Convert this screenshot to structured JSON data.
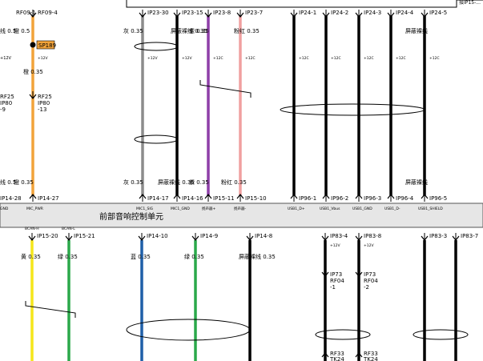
{
  "upper_module_label": "前部音响控制单元",
  "colors": {
    "orange": "#f2a33a",
    "gray": "#8c8c8c",
    "black": "#000000",
    "purple": "#8e3fa8",
    "pink": "#f0a0a0",
    "yellow": "#f5e61a",
    "green": "#2aa84a",
    "blue": "#1f5fa8",
    "splice": "#f2a33a",
    "bus": "#e6e6e6"
  },
  "left_partial": {
    "top_pin": "RF09-1",
    "top_wire": "线 0.5",
    "mid_val": "+12V",
    "connector": [
      "RF25",
      "IP80",
      "-9"
    ],
    "bottom_wire": "线 0.5",
    "bottom_pin": "IP14-28",
    "bottom_sig": "GND"
  },
  "top_wires": [
    {
      "id": "w1",
      "color_key": "orange",
      "top_pin": "RF09-4",
      "top_label": "橙 0.5",
      "splice": "SP189",
      "mid_val": "+12V",
      "mid_label": "橙 0.35",
      "connector": [
        "RF25",
        "IP80",
        "-13"
      ],
      "bottom_label": "橙 0.35",
      "bottom_pin": "IP14-27",
      "bottom_sig": "MIC_PWR"
    },
    {
      "id": "w2",
      "color_key": "gray",
      "top_pin": "IP23-30",
      "top_label": "灰 0.35",
      "mid_val": "+12V",
      "bottom_label": "灰 0.35",
      "bottom_pin": "IP14-17",
      "bottom_sig": "MIC1_SIG"
    },
    {
      "id": "w3",
      "color_key": "black",
      "top_pin": "IP23-15",
      "top_label": "屏蔽裸线 0.35",
      "mid_val": "+12V",
      "bottom_label": "屏蔽裸线 0.35",
      "bottom_pin": "IP14-16",
      "bottom_sig": "MIC1_GND"
    },
    {
      "id": "w4",
      "color_key": "purple",
      "top_pin": "IP23-8",
      "top_label": "紫 0.35",
      "mid_val": "+12C",
      "bottom_label": "紫 0.35",
      "bottom_pin": "IP15-11",
      "bottom_sig": "扬声器+"
    },
    {
      "id": "w5",
      "color_key": "pink",
      "top_pin": "IP23-7",
      "top_label": "粉红 0.35",
      "mid_val": "+12C",
      "bottom_label": "粉红 0.35",
      "bottom_pin": "IP15-10",
      "bottom_sig": "扬声器-"
    },
    {
      "id": "w6",
      "color_key": "black",
      "top_pin": "IP24-1",
      "top_label": "",
      "mid_val": "+12C",
      "bottom_label": "",
      "bottom_pin": "IP96-1",
      "bottom_sig": "USB1_D+"
    },
    {
      "id": "w7",
      "color_key": "black",
      "top_pin": "IP24-2",
      "top_label": "",
      "mid_val": "+12C",
      "bottom_label": "",
      "bottom_pin": "IP96-2",
      "bottom_sig": "USB1_Vbus"
    },
    {
      "id": "w8",
      "color_key": "black",
      "top_pin": "IP24-3",
      "top_label": "",
      "mid_val": "+12C",
      "bottom_label": "",
      "bottom_pin": "IP96-3",
      "bottom_sig": "USB1_GND"
    },
    {
      "id": "w9",
      "color_key": "black",
      "top_pin": "IP24-4",
      "top_label": "",
      "mid_val": "+12C",
      "bottom_label": "",
      "bottom_pin": "IP96-4",
      "bottom_sig": "USB1_D-"
    },
    {
      "id": "w10",
      "color_key": "black",
      "top_pin": "IP24-5",
      "top_label": "屏蔽裸线",
      "mid_val": "+12C",
      "bottom_label": "屏蔽裸线",
      "bottom_pin": "IP96-5",
      "bottom_sig": "USB1_SHIELD"
    }
  ],
  "bottom_wires": [
    {
      "id": "b1",
      "color_key": "yellow",
      "sig": "BCAN-H",
      "pin": "IP15-20",
      "label": "黄 0.35"
    },
    {
      "id": "b2",
      "color_key": "green",
      "sig": "BCAN-L",
      "pin": "IP15-21",
      "label": "绿 0.35"
    },
    {
      "id": "b3",
      "color_key": "blue",
      "sig": "",
      "pin": "IP14-10",
      "label": "蓝 0.35"
    },
    {
      "id": "b4",
      "color_key": "green",
      "sig": "",
      "pin": "IP14-9",
      "label": "绿 0.35"
    },
    {
      "id": "b5",
      "color_key": "black",
      "sig": "",
      "pin": "IP14-8",
      "label": "屏蔽裸线 0.35"
    },
    {
      "id": "b6",
      "color_key": "black",
      "sig": "",
      "pin": "IP83-4",
      "label": "+12V",
      "connector": [
        "IP73",
        "RF04",
        "-1"
      ],
      "bottom_connector": [
        "RF33",
        "TK24"
      ]
    },
    {
      "id": "b7",
      "color_key": "black",
      "sig": "",
      "pin": "IP83-8",
      "label": "+12V",
      "connector": [
        "IP73",
        "RF04",
        "-2"
      ],
      "bottom_connector": [
        "RF33",
        "TK24"
      ]
    },
    {
      "id": "b8",
      "color_key": "black",
      "sig": "",
      "pin": "IP83-3",
      "label": ""
    },
    {
      "id": "b9",
      "color_key": "black",
      "sig": "",
      "pin": "IP83-7",
      "label": ""
    }
  ],
  "corner_note": "接IP15-..."
}
